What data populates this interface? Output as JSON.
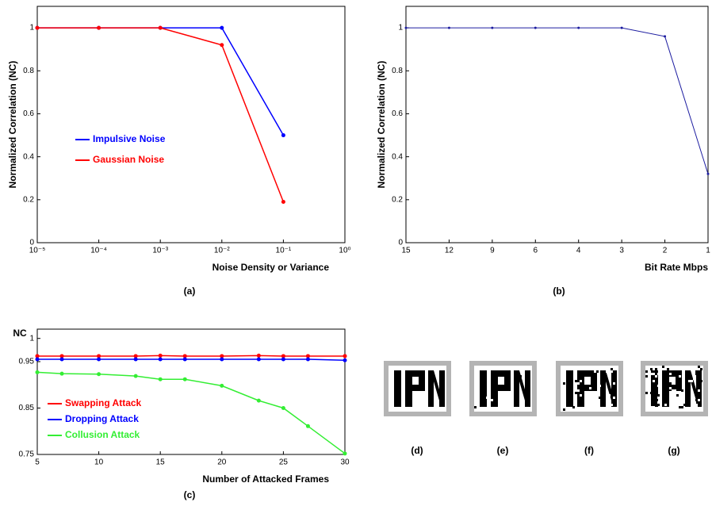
{
  "chart_data": [
    {
      "type": "line",
      "xscale": "log",
      "ylabel": "Normalized Correlation (NC)",
      "xlabel": "Noise Density  or  Variance",
      "caption": "(a)",
      "x": [
        1e-05,
        0.0001,
        0.001,
        0.01,
        0.1
      ],
      "xlim": [
        1e-05,
        1
      ],
      "xticks": [
        {
          "value": 1e-05,
          "label": "10⁻⁵"
        },
        {
          "value": 0.0001,
          "label": "10⁻⁴"
        },
        {
          "value": 0.001,
          "label": "10⁻³"
        },
        {
          "value": 0.01,
          "label": "10⁻²"
        },
        {
          "value": 0.1,
          "label": "10⁻¹"
        },
        {
          "value": 1,
          "label": "10⁰"
        }
      ],
      "ylim": [
        0,
        1.1
      ],
      "yticks": [
        0,
        0.2,
        0.4,
        0.6,
        0.8,
        1
      ],
      "series": [
        {
          "name": "Impulsive Noise",
          "color": "#0000ff",
          "values": [
            1,
            1,
            1,
            1,
            0.5
          ]
        },
        {
          "name": "Gaussian Noise",
          "color": "#ff0000",
          "values": [
            1,
            1,
            1,
            0.92,
            0.19
          ]
        }
      ]
    },
    {
      "type": "line",
      "ylabel": "Normalized Correlation (NC)",
      "xlabel": "Bit Rate Mbps",
      "caption": "(b)",
      "categories": [
        "15",
        "12",
        "9",
        "6",
        "4",
        "3",
        "2",
        "1"
      ],
      "ylim": [
        0,
        1.1
      ],
      "yticks": [
        0,
        0.2,
        0.4,
        0.6,
        0.8,
        1
      ],
      "series": [
        {
          "color": "#1c1ca0",
          "values": [
            1,
            1,
            1,
            1,
            1,
            1,
            0.96,
            0.32
          ]
        }
      ]
    },
    {
      "type": "line",
      "ylabel": "NC",
      "xlabel": "Number of Attacked Frames",
      "caption": "(c)",
      "x": [
        5,
        7,
        10,
        13,
        15,
        17,
        20,
        23,
        25,
        27,
        30
      ],
      "xlim": [
        5,
        30
      ],
      "xticks": [
        5,
        10,
        15,
        20,
        25,
        30
      ],
      "ylim": [
        0.75,
        1.02
      ],
      "yticks": [
        0.75,
        0.85,
        0.95,
        1
      ],
      "series": [
        {
          "name": "Swapping Attack",
          "color": "#ff0000",
          "values": [
            0.962,
            0.962,
            0.962,
            0.962,
            0.963,
            0.962,
            0.962,
            0.963,
            0.962,
            0.962,
            0.962
          ]
        },
        {
          "name": "Dropping Attack",
          "color": "#0000ff",
          "values": [
            0.955,
            0.955,
            0.955,
            0.955,
            0.955,
            0.955,
            0.955,
            0.955,
            0.955,
            0.955,
            0.953
          ]
        },
        {
          "name": "Collusion Attack",
          "color": "#33ee33",
          "values": [
            0.927,
            0.924,
            0.923,
            0.919,
            0.912,
            0.912,
            0.898,
            0.866,
            0.85,
            0.811,
            0.752
          ]
        }
      ]
    }
  ],
  "images": {
    "captions": [
      "(d)",
      "(e)",
      "(f)",
      "(g)"
    ]
  }
}
